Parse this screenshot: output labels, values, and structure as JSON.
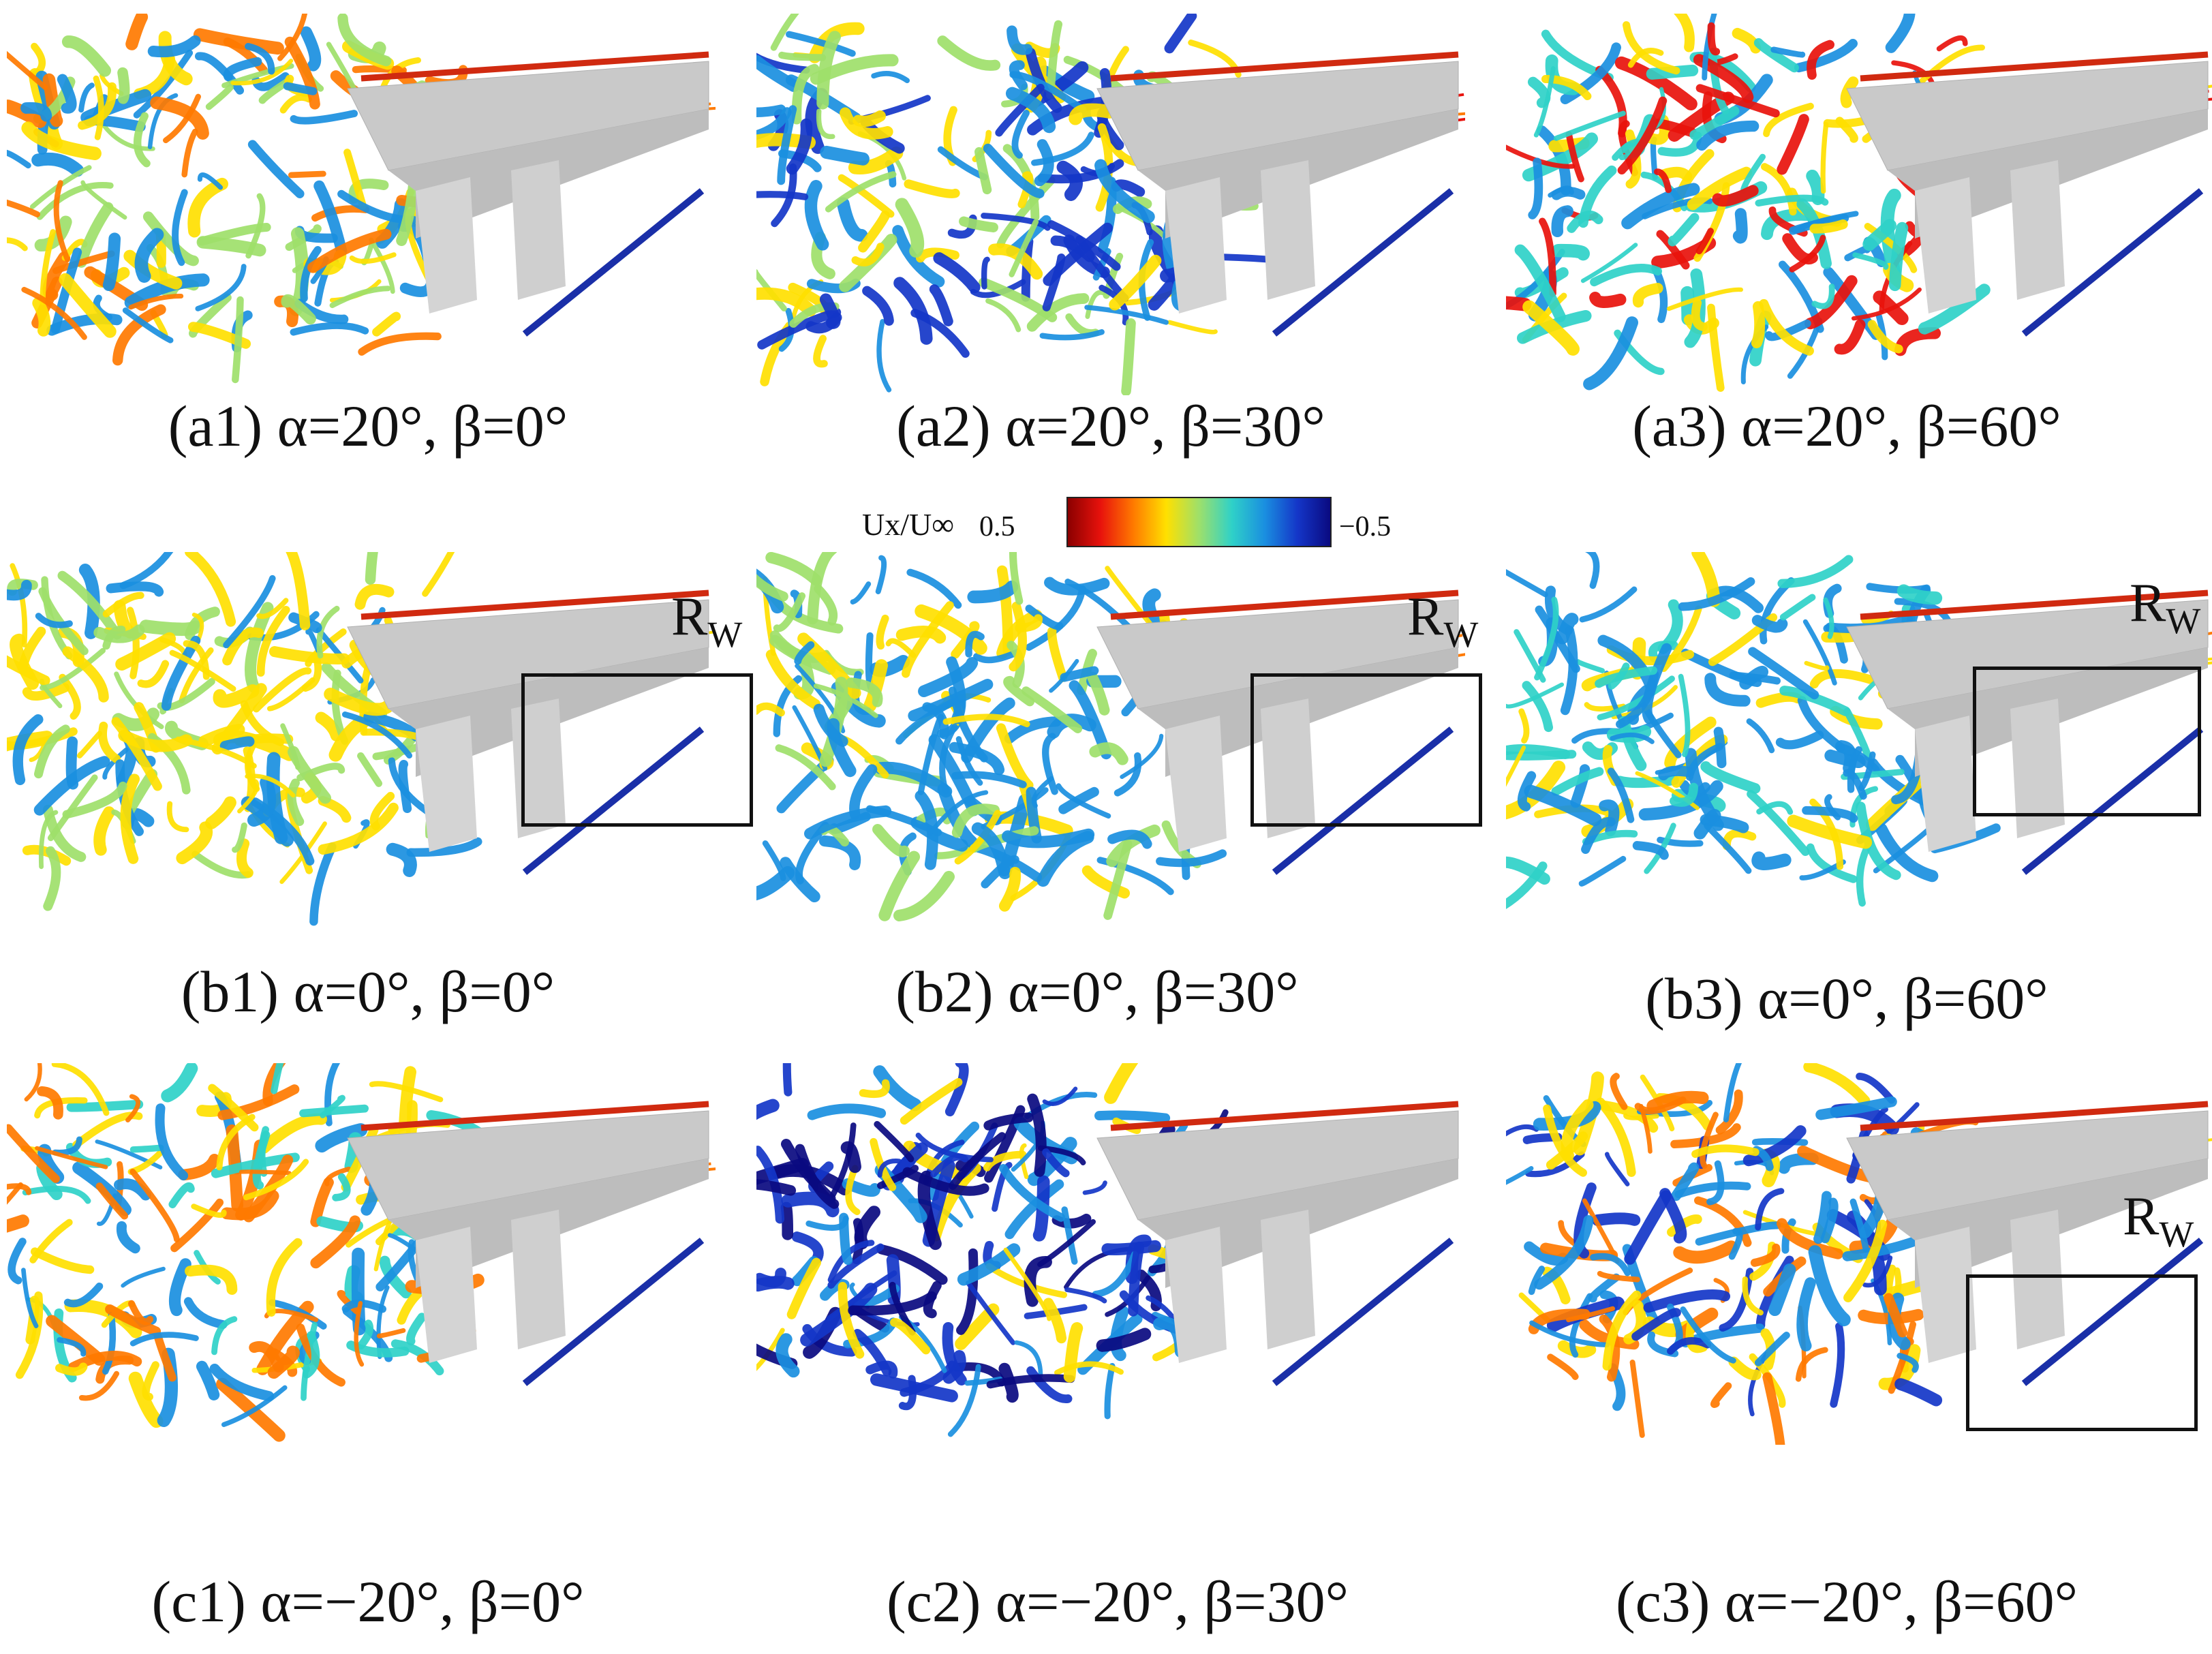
{
  "colorbar": {
    "label": "Ux/U∞",
    "left_value": "0.5",
    "right_value": "−0.5",
    "colors": [
      "#8b0000",
      "#e8120c",
      "#ff7a00",
      "#ffe000",
      "#9ee06a",
      "#2fd1c8",
      "#1a8fe0",
      "#1436c8",
      "#0a0a80"
    ]
  },
  "panels": [
    {
      "id": "a1",
      "caption": "(a1) α=20°, β=0°",
      "rw": ""
    },
    {
      "id": "a2",
      "caption": "(a2) α=20°, β=30°",
      "rw": ""
    },
    {
      "id": "a3",
      "caption": "(a3) α=20°, β=60°",
      "rw": ""
    },
    {
      "id": "b1",
      "caption": "(b1) α=0°, β=0°",
      "rw": "R",
      "rw_sub": "W"
    },
    {
      "id": "b2",
      "caption": "(b2) α=0°, β=30°",
      "rw": "R",
      "rw_sub": "W"
    },
    {
      "id": "b3",
      "caption": "(b3) α=0°, β=60°",
      "rw": "R",
      "rw_sub": "W"
    },
    {
      "id": "c1",
      "caption": "(c1) α=−20°, β=0°",
      "rw": ""
    },
    {
      "id": "c2",
      "caption": "(c2) α=−20°, β=30°",
      "rw": ""
    },
    {
      "id": "c3",
      "caption": "(c3) α=−20°, β=60°",
      "rw": "R",
      "rw_sub": "W"
    }
  ]
}
